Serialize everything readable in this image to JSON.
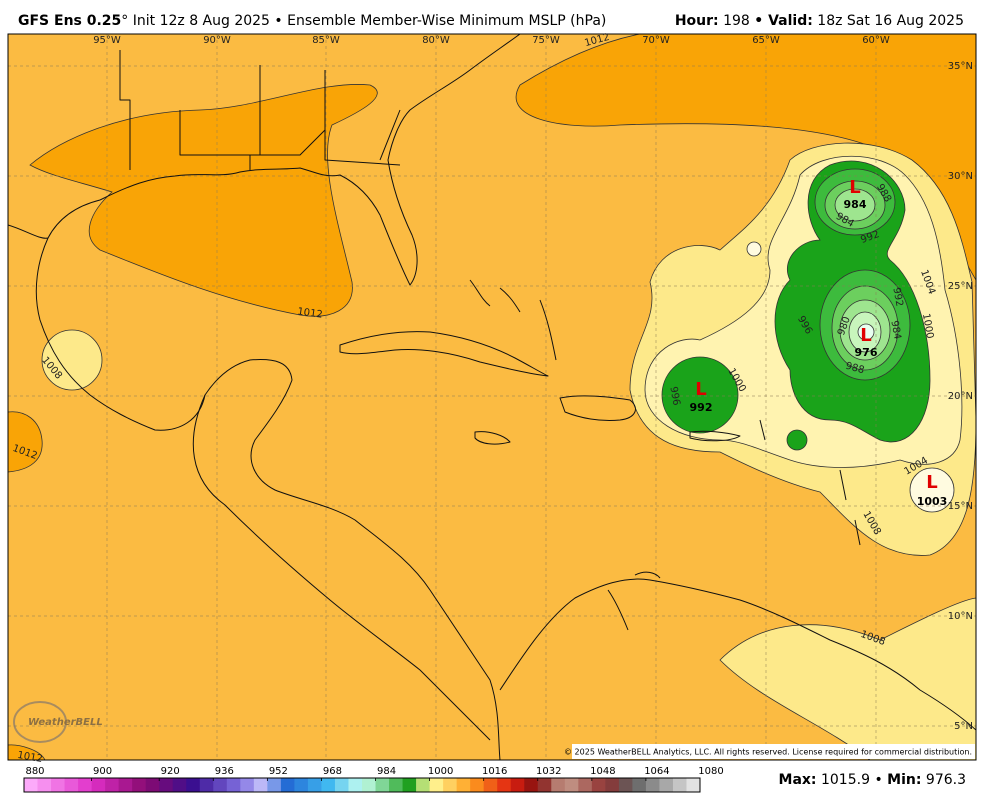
{
  "header": {
    "model": "GFS Ens 0.25",
    "degree": "°",
    "description": "Init 12z 8 Aug 2025 • Ensemble Member-Wise Minimum MSLP (hPa)",
    "hour_label": "Hour:",
    "hour": 198,
    "valid_label": "• Valid:",
    "valid": "18z Sat 16 Aug 2025"
  },
  "map": {
    "longitude_labels": [
      "95°W",
      "90°W",
      "85°W",
      "80°W",
      "75°W",
      "70°W",
      "65°W",
      "60°W"
    ],
    "latitude_labels": [
      "35°N",
      "30°N",
      "25°N",
      "20°N",
      "15°N",
      "10°N",
      "5°N"
    ],
    "contour_labels": [
      1012,
      1012,
      1012,
      1008,
      1004,
      1000,
      992,
      988,
      984,
      992,
      980,
      984,
      996,
      988,
      1000,
      996,
      1004,
      1008,
      1008,
      1012
    ],
    "lows": [
      {
        "symbol": "L",
        "pressure": 984
      },
      {
        "symbol": "L",
        "pressure": 976
      },
      {
        "symbol": "L",
        "pressure": 992
      },
      {
        "symbol": "L",
        "pressure": 1003
      }
    ],
    "copyright": "© 2025 WeatherBELL Analytics, LLC. All rights reserved. License required for commercial distribution.",
    "logo": "WeatherBELL"
  },
  "colorbar": {
    "range": [
      880,
      1080
    ],
    "ticks": [
      880,
      900,
      920,
      936,
      952,
      968,
      984,
      1000,
      1016,
      1032,
      1048,
      1064,
      1080
    ]
  },
  "footer": {
    "max_label": "Max:",
    "max": 1015.9,
    "separator": "•",
    "min_label": "Min:",
    "min": 976.3
  }
}
